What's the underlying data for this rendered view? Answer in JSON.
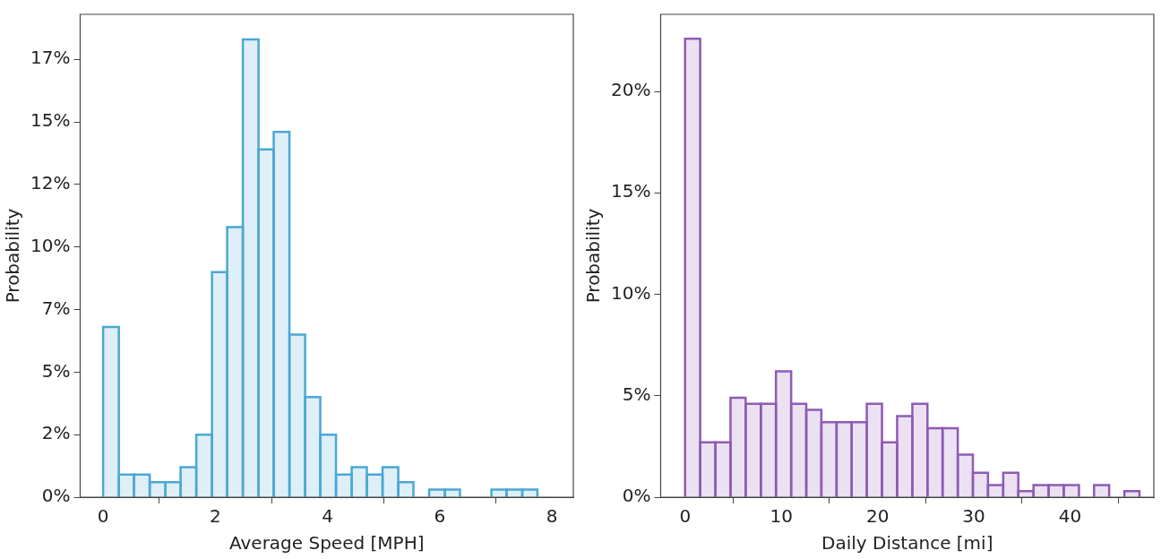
{
  "chart_data": [
    {
      "type": "histogram",
      "xlabel": "Average Speed [MPH]",
      "ylabel": "Probability",
      "color": "#4aa8d4",
      "bins": [
        0,
        0.28,
        0.55,
        0.83,
        1.11,
        1.38,
        1.66,
        1.94,
        2.21,
        2.49,
        2.77,
        3.04,
        3.32,
        3.6,
        3.87,
        4.15,
        4.43,
        4.7,
        4.98,
        5.26,
        5.53,
        5.81,
        6.09,
        6.36,
        6.64,
        6.92,
        7.19,
        7.47,
        7.74,
        8.02
      ],
      "values": [
        6.8,
        0.9,
        0.9,
        0.6,
        0.6,
        1.2,
        2.5,
        9.0,
        10.8,
        18.3,
        13.9,
        14.6,
        6.5,
        4.0,
        2.5,
        0.9,
        1.2,
        0.9,
        1.2,
        0.6,
        0,
        0.3,
        0.3,
        0,
        0,
        0.3,
        0.3,
        0.3,
        0
      ],
      "xlim": [
        -0.41,
        8.38
      ],
      "xticks": [
        0,
        2,
        4,
        6,
        8
      ],
      "ylim": [
        0,
        19.3
      ],
      "yticks": [
        {
          "value": 0,
          "label": "0%"
        },
        {
          "value": 2.5,
          "label": "2%"
        },
        {
          "value": 5,
          "label": "5%"
        },
        {
          "value": 7.5,
          "label": "7%"
        },
        {
          "value": 10,
          "label": "10%"
        },
        {
          "value": 12.5,
          "label": "12%"
        },
        {
          "value": 15,
          "label": "15%"
        },
        {
          "value": 17.5,
          "label": "17%"
        }
      ]
    },
    {
      "type": "histogram",
      "xlabel": "Daily Distance [mi]",
      "ylabel": "Probability",
      "color": "#8e5bb5",
      "bins": [
        0,
        1.57,
        3.15,
        4.72,
        6.29,
        7.87,
        9.44,
        11.02,
        12.59,
        14.16,
        15.74,
        17.31,
        18.88,
        20.46,
        22.03,
        23.61,
        25.18,
        26.75,
        28.33,
        29.9,
        31.47,
        33.05,
        34.62,
        36.2,
        37.77,
        39.34,
        40.92,
        42.49,
        44.06,
        45.64,
        47.21
      ],
      "values": [
        22.6,
        2.7,
        2.7,
        4.9,
        4.6,
        4.6,
        6.2,
        4.6,
        4.3,
        3.7,
        3.7,
        3.7,
        4.6,
        2.7,
        4.0,
        4.6,
        3.4,
        3.4,
        2.1,
        1.2,
        0.6,
        1.2,
        0.3,
        0.6,
        0.6,
        0.6,
        0,
        0.6,
        0,
        0.3
      ],
      "xlim": [
        -2.54,
        48.7
      ],
      "xticks": [
        0,
        10,
        20,
        30,
        40
      ],
      "ylim": [
        0,
        23.8
      ],
      "yticks": [
        {
          "value": 0,
          "label": "0%"
        },
        {
          "value": 5,
          "label": "5%"
        },
        {
          "value": 10,
          "label": "10%"
        },
        {
          "value": 15,
          "label": "15%"
        },
        {
          "value": 20,
          "label": "20%"
        }
      ]
    }
  ]
}
